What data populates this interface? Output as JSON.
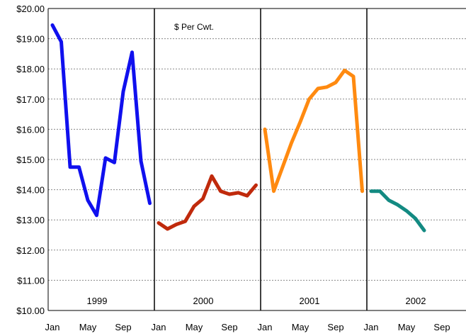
{
  "chart_data": {
    "type": "line",
    "annotation": "$ Per Cwt.",
    "ylim": [
      10,
      20
    ],
    "y_ticks": [
      "$10.00",
      "$11.00",
      "$12.00",
      "$13.00",
      "$14.00",
      "$15.00",
      "$16.00",
      "$17.00",
      "$18.00",
      "$19.00",
      "$20.00"
    ],
    "x_tick_labels": [
      "Jan",
      "May",
      "Sep",
      "Jan",
      "May",
      "Sep",
      "Jan",
      "May",
      "Sep",
      "Jan",
      "May",
      "Sep"
    ],
    "grid": "horizontal dashed",
    "series": [
      {
        "year_label": "1999",
        "color": "#1010ee",
        "values": [
          19.45,
          18.9,
          14.75,
          14.75,
          13.65,
          13.15,
          15.05,
          14.9,
          17.25,
          18.55,
          14.95,
          13.55
        ]
      },
      {
        "year_label": "2000",
        "color": "#c02a0c",
        "values": [
          12.9,
          12.7,
          12.85,
          12.95,
          13.45,
          13.7,
          14.45,
          13.95,
          13.85,
          13.9,
          13.8,
          14.15
        ]
      },
      {
        "year_label": "2001",
        "color": "#ff8a10",
        "values": [
          16.0,
          13.95,
          14.75,
          15.55,
          16.25,
          17.0,
          17.35,
          17.4,
          17.55,
          17.95,
          17.75,
          13.95
        ]
      },
      {
        "year_label": "2002",
        "color": "#138a82",
        "values": [
          13.95,
          13.95,
          13.65,
          13.5,
          13.3,
          13.05,
          12.65
        ]
      }
    ]
  }
}
